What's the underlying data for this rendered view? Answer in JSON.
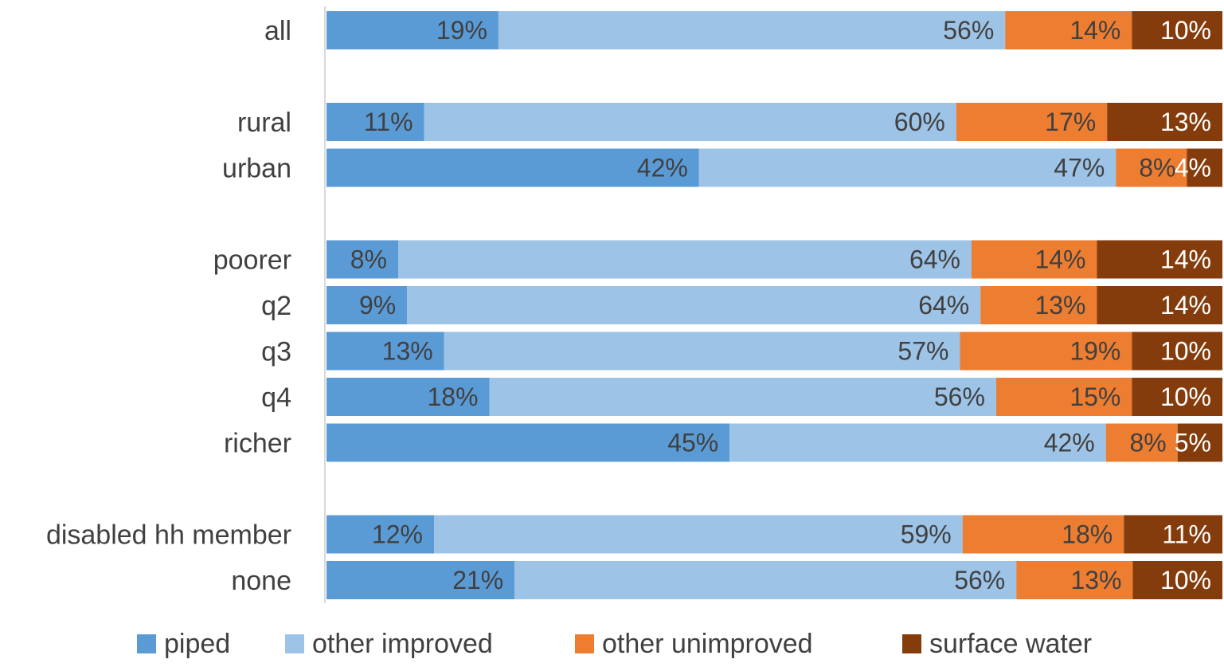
{
  "chart_data": {
    "type": "bar",
    "orientation": "horizontal",
    "stacked": "percent",
    "categories": [
      "all",
      "",
      "rural",
      "urban",
      "",
      "poorer",
      "q2",
      "q3",
      "q4",
      "richer",
      "",
      "disabled hh member",
      "none"
    ],
    "series": [
      {
        "name": "piped",
        "color": "#5b9bd5",
        "values": [
          19,
          null,
          11,
          42,
          null,
          8,
          9,
          13,
          18,
          45,
          null,
          12,
          21
        ],
        "labels": [
          "19%",
          "",
          "11%",
          "42%",
          "",
          "8%",
          "9%",
          "13%",
          "18%",
          "45%",
          "",
          "12%",
          "21%"
        ]
      },
      {
        "name": "other improved",
        "color": "#9dc3e6",
        "values": [
          56,
          null,
          60,
          47,
          null,
          64,
          64,
          57,
          56,
          42,
          null,
          59,
          56
        ],
        "labels": [
          "56%",
          "",
          "60%",
          "47%",
          "",
          "64%",
          "64%",
          "57%",
          "56%",
          "42%",
          "",
          "59%",
          "56%"
        ]
      },
      {
        "name": "other unimproved",
        "color": "#ed7d31",
        "values": [
          14,
          null,
          17,
          8,
          null,
          14,
          13,
          19,
          15,
          8,
          null,
          18,
          13
        ],
        "labels": [
          "14%",
          "",
          "17%",
          "8%",
          "",
          "14%",
          "13%",
          "19%",
          "15%",
          "8%",
          "",
          "18%",
          "13%"
        ]
      },
      {
        "name": "surface water",
        "color": "#843c0c",
        "values": [
          10,
          null,
          13,
          4,
          null,
          14,
          14,
          10,
          10,
          5,
          null,
          11,
          10
        ],
        "labels": [
          "10%",
          "",
          "13%",
          "4%",
          "",
          "14%",
          "14%",
          "10%",
          "10%",
          "5%",
          "",
          "11%",
          "10%"
        ]
      }
    ],
    "title": "",
    "xlabel": "",
    "ylabel": "",
    "legend_position": "bottom",
    "grid": false
  }
}
